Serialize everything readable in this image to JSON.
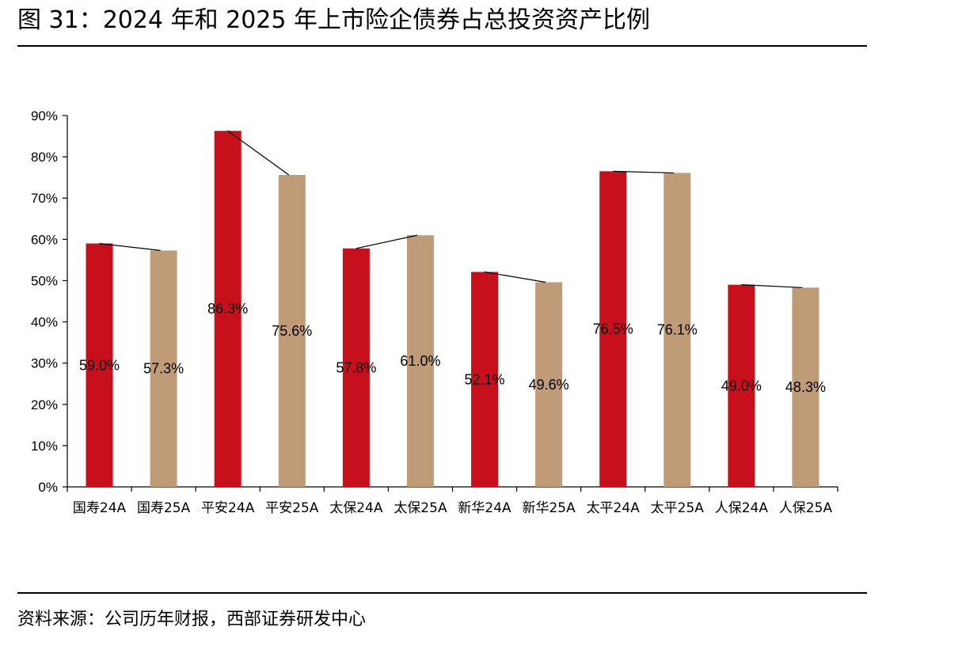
{
  "figure": {
    "title": "图 31：2024 年和 2025 年上市险企债券占总投资资产比例",
    "source": "资料来源：公司历年财报，西部证券研发中心"
  },
  "chart_data": {
    "type": "bar",
    "categories": [
      "国寿24A",
      "国寿25A",
      "平安24A",
      "平安25A",
      "太保24A",
      "太保25A",
      "新华24A",
      "新华25A",
      "太平24A",
      "太平25A",
      "人保24A",
      "人保25A"
    ],
    "values": [
      59.0,
      57.3,
      86.3,
      75.6,
      57.8,
      61.0,
      52.1,
      49.6,
      76.5,
      76.1,
      49.0,
      48.3
    ],
    "data_labels": [
      "59.0%",
      "57.3%",
      "86.3%",
      "75.6%",
      "57.8%",
      "61.0%",
      "52.1%",
      "49.6%",
      "76.5%",
      "76.1%",
      "49.0%",
      "48.3%"
    ],
    "yticks": [
      "0%",
      "10%",
      "20%",
      "30%",
      "40%",
      "50%",
      "60%",
      "70%",
      "80%",
      "90%"
    ],
    "ylim": [
      0,
      90
    ],
    "colors": {
      "year_2024": "#c8101d",
      "year_2025": "#bf9b78",
      "connector": "#000000",
      "axis": "#000000"
    },
    "connectors": "line linking each company's 24A bar top to its 25A bar top",
    "grid": false,
    "legend": "none"
  }
}
